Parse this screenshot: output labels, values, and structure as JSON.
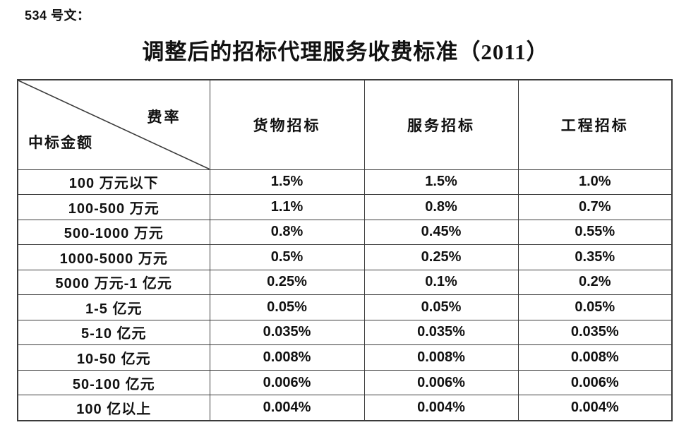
{
  "page": {
    "doc_label": "534 号文：",
    "title": "调整后的招标代理服务收费标准（2011）"
  },
  "table": {
    "corner": {
      "top_right": "费率",
      "bottom_left": "中标金额"
    },
    "columns": [
      "货物招标",
      "服务招标",
      "工程招标"
    ],
    "rows": [
      {
        "amount": "100 万元以下",
        "values": [
          "1.5%",
          "1.5%",
          "1.0%"
        ]
      },
      {
        "amount": "100-500 万元",
        "values": [
          "1.1%",
          "0.8%",
          "0.7%"
        ]
      },
      {
        "amount": "500-1000 万元",
        "values": [
          "0.8%",
          "0.45%",
          "0.55%"
        ]
      },
      {
        "amount": "1000-5000 万元",
        "values": [
          "0.5%",
          "0.25%",
          "0.35%"
        ]
      },
      {
        "amount": "5000 万元-1 亿元",
        "values": [
          "0.25%",
          "0.1%",
          "0.2%"
        ]
      },
      {
        "amount": "1-5 亿元",
        "values": [
          "0.05%",
          "0.05%",
          "0.05%"
        ]
      },
      {
        "amount": "5-10 亿元",
        "values": [
          "0.035%",
          "0.035%",
          "0.035%"
        ]
      },
      {
        "amount": "10-50 亿元",
        "values": [
          "0.008%",
          "0.008%",
          "0.008%"
        ]
      },
      {
        "amount": "50-100 亿元",
        "values": [
          "0.006%",
          "0.006%",
          "0.006%"
        ]
      },
      {
        "amount": "100 亿以上",
        "values": [
          "0.004%",
          "0.004%",
          "0.004%"
        ]
      }
    ]
  },
  "colors": {
    "border": "#3b3b3b",
    "text": "#111111",
    "background": "#ffffff"
  }
}
